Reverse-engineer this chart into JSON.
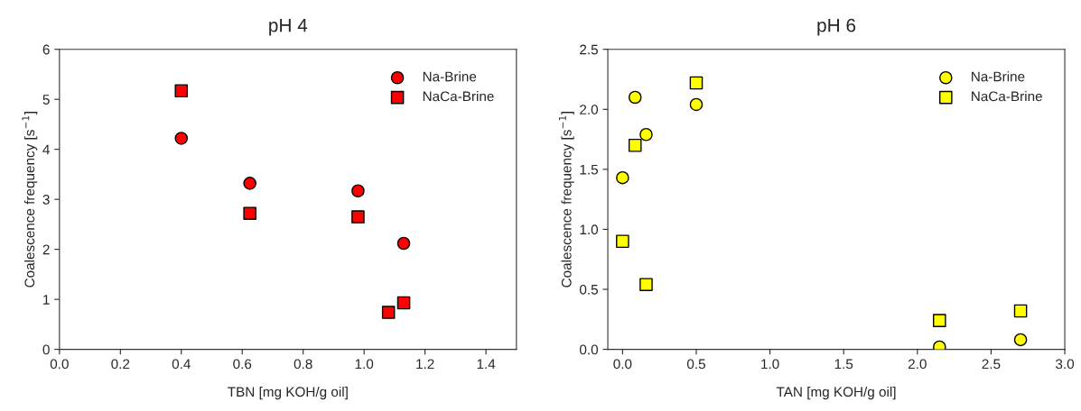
{
  "chart_data": [
    {
      "type": "scatter",
      "title": "pH 4",
      "xlabel": "TBN [mg KOH/g oil]",
      "ylabel": "Coalescence frequency [s$^{−1}$]",
      "xlim": [
        0,
        1.5
      ],
      "xticks": [
        {
          "value": 0,
          "label": "0.0"
        },
        0.2,
        0.4,
        0.6,
        0.8,
        {
          "value": 1,
          "label": "1.0"
        },
        1.2,
        1.4
      ],
      "ylim": [
        0,
        6
      ],
      "yticks": [
        0,
        1,
        2,
        3,
        4,
        5,
        6
      ],
      "legend": "top right",
      "grid": false,
      "series": [
        {
          "name": "Na-Brine",
          "color": "#ff0000",
          "marker": "circle",
          "x": [
            0.4,
            0.625,
            0.98,
            1.13
          ],
          "values": [
            4.22,
            3.32,
            3.17,
            2.12
          ]
        },
        {
          "name": "NaCa-Brine",
          "color": "#ff0000",
          "marker": "square",
          "x": [
            0.4,
            0.625,
            0.98,
            1.08,
            1.13
          ],
          "values": [
            5.17,
            2.72,
            2.65,
            0.74,
            0.93
          ]
        }
      ]
    },
    {
      "type": "scatter",
      "title": "pH 6",
      "xlabel": "TAN [mg KOH/g oil]",
      "ylabel": "Coalescence frequency [s$^{−1}$]",
      "xlim": [
        -0.1,
        3.0
      ],
      "xticks": [
        {
          "value": 0,
          "label": "0.0"
        },
        0.5,
        {
          "value": 1,
          "label": "1.0"
        },
        1.5,
        {
          "value": 2,
          "label": "2.0"
        },
        2.5,
        {
          "value": 3,
          "label": "3.0"
        }
      ],
      "ylim": [
        0,
        2.5
      ],
      "yticks": [
        {
          "value": 0,
          "label": "0.0"
        },
        0.5,
        {
          "value": 1,
          "label": "1.0"
        },
        1.5,
        {
          "value": 2,
          "label": "2.0"
        },
        2.5
      ],
      "legend": "top right",
      "grid": false,
      "series": [
        {
          "name": "Na-Brine",
          "color": "#ffff00",
          "marker": "circle",
          "x": [
            0,
            0.085,
            0.16,
            0.5,
            2.15,
            2.7
          ],
          "values": [
            1.43,
            2.1,
            1.79,
            2.04,
            0.02,
            0.08
          ]
        },
        {
          "name": "NaCa-Brine",
          "color": "#ffff00",
          "marker": "square",
          "x": [
            0,
            0.085,
            0.16,
            0.5,
            2.15,
            2.7
          ],
          "values": [
            0.9,
            1.7,
            0.54,
            2.22,
            0.24,
            0.32
          ]
        }
      ]
    }
  ]
}
